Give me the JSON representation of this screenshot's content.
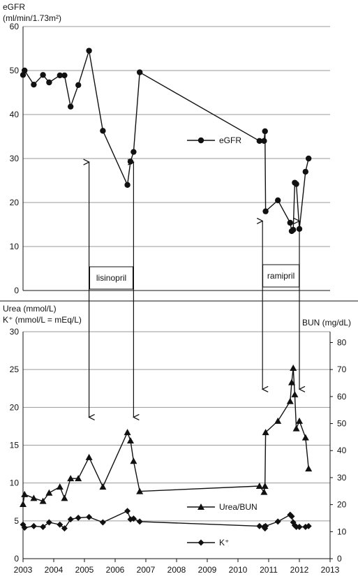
{
  "chart_data": [
    {
      "type": "line",
      "ylabel": "eGFR (ml/min/1.73m²)",
      "ylabel_line1": "eGFR",
      "ylabel_line2": "(ml/min/1.73m²)",
      "xlim": [
        2003,
        2013
      ],
      "ylim": [
        0,
        60
      ],
      "yticks": [
        "0",
        "10",
        "20",
        "30",
        "40",
        "50",
        "60"
      ],
      "grid": true,
      "legend_position": "center-right",
      "series": [
        {
          "name": "eGFR",
          "marker": "circle",
          "x": [
            2003.0,
            2003.05,
            2003.35,
            2003.65,
            2003.85,
            2004.2,
            2004.35,
            2004.55,
            2004.8,
            2005.15,
            2005.6,
            2006.4,
            2006.5,
            2006.6,
            2006.8,
            2010.7,
            2010.85,
            2010.88,
            2010.9,
            2011.3,
            2011.7,
            2011.75,
            2011.8,
            2011.85,
            2011.9,
            2012.0,
            2012.2,
            2012.3
          ],
          "values": [
            49,
            50,
            46.8,
            49,
            47.3,
            48.9,
            48.9,
            41.8,
            46.7,
            54.5,
            36.3,
            24,
            29.3,
            31.5,
            49.6,
            34,
            34,
            36.2,
            18,
            20.5,
            15.4,
            13.5,
            13.8,
            24.5,
            24.2,
            14,
            27,
            30
          ]
        }
      ],
      "annotations": [
        {
          "text": "lisinopril",
          "x_start": 2005.15,
          "x_end": 2006.6
        },
        {
          "text": "ramipril",
          "x_start": 2010.8,
          "x_end": 2012.0
        }
      ]
    },
    {
      "type": "line",
      "ylabel_left_line1": "Urea (mmol/L)",
      "ylabel_left_line2": "K⁺ (mmol/L = mEq/L)",
      "ylabel_right": "BUN (mg/dL)",
      "xlim": [
        2003,
        2013
      ],
      "ylim": [
        0,
        30
      ],
      "ylim_right": [
        0,
        84
      ],
      "xticks": [
        "2003",
        "2004",
        "2005",
        "2006",
        "2007",
        "2008",
        "2009",
        "2010",
        "2011",
        "2012",
        "2013"
      ],
      "yticks": [
        "0",
        "5",
        "10",
        "15",
        "20",
        "25",
        "30"
      ],
      "yticks_right": [
        "0",
        "10",
        "20",
        "30",
        "40",
        "50",
        "60",
        "70",
        "80"
      ],
      "grid": true,
      "legend_position": "bottom-right",
      "series": [
        {
          "name": "Urea/BUN",
          "marker": "triangle",
          "x": [
            2003.0,
            2003.05,
            2003.35,
            2003.65,
            2003.85,
            2004.2,
            2004.35,
            2004.55,
            2004.8,
            2005.15,
            2005.6,
            2006.4,
            2006.5,
            2006.6,
            2006.8,
            2010.7,
            2010.85,
            2010.88,
            2010.9,
            2011.3,
            2011.7,
            2011.75,
            2011.8,
            2011.85,
            2011.9,
            2012.0,
            2012.2,
            2012.3
          ],
          "values": [
            7.2,
            8.5,
            8.0,
            7.6,
            8.7,
            9.5,
            8.0,
            10.6,
            10.6,
            13.4,
            9.5,
            16.7,
            15.6,
            12.9,
            8.9,
            9.6,
            8.8,
            9.6,
            16.7,
            18.2,
            20.8,
            23.3,
            25.2,
            21.7,
            17.2,
            18.2,
            16.0,
            11.9
          ]
        },
        {
          "name": "K⁺",
          "marker": "diamond",
          "x": [
            2003.0,
            2003.05,
            2003.35,
            2003.65,
            2003.85,
            2004.2,
            2004.35,
            2004.55,
            2004.8,
            2005.15,
            2005.6,
            2006.4,
            2006.5,
            2006.6,
            2006.8,
            2010.7,
            2010.85,
            2010.88,
            2010.9,
            2011.3,
            2011.7,
            2011.75,
            2011.8,
            2011.85,
            2011.9,
            2012.0,
            2012.2,
            2012.3
          ],
          "values": [
            4.5,
            4.1,
            4.3,
            4.2,
            4.8,
            4.5,
            4.0,
            5.2,
            5.4,
            5.5,
            4.8,
            6.3,
            5.2,
            5.3,
            4.9,
            4.3,
            4.2,
            4.0,
            4.3,
            4.9,
            5.8,
            5.6,
            4.8,
            4.4,
            4.2,
            4.2,
            4.2,
            4.3
          ]
        }
      ]
    }
  ]
}
